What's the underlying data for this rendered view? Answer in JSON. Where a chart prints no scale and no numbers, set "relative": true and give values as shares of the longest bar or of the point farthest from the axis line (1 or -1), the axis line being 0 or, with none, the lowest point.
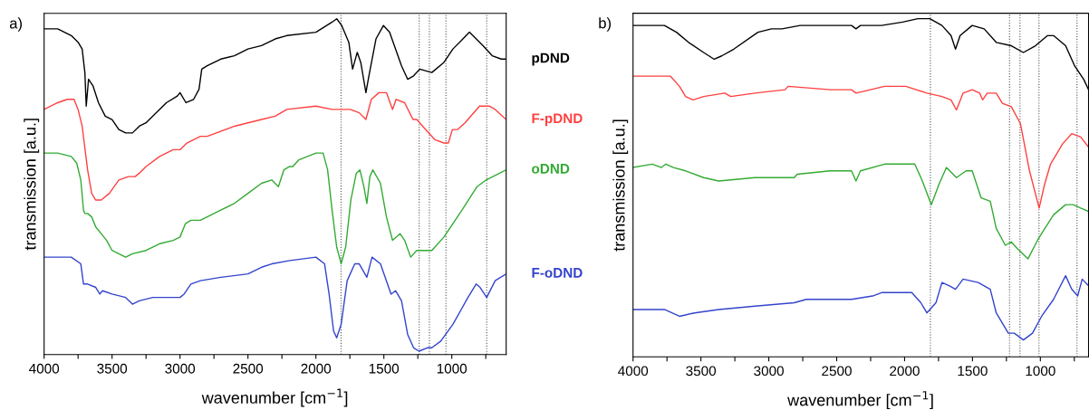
{
  "chart_data": [
    {
      "type": "line",
      "title": "a)",
      "xlabel": "wavenumber [cm$^{−1}$]",
      "ylabel": "transmission [a.u.]",
      "relative": true,
      "tick_labels": "x",
      "xlim": [
        4000,
        600
      ],
      "xticks": [
        4000,
        {
          "value": 3750,
          "label": null
        },
        3500,
        {
          "value": 3250,
          "label": null
        },
        3000,
        {
          "value": 2750,
          "label": null
        },
        2500,
        {
          "value": 2250,
          "label": null
        },
        2000,
        {
          "value": 1750,
          "label": null
        },
        1500,
        {
          "value": 1250,
          "label": null
        },
        1000,
        {
          "value": 750,
          "label": null
        }
      ],
      "ref_lines": [
        {
          "axis": "x",
          "value": 1815,
          "color": "#555555",
          "line_style": "dotted"
        },
        {
          "axis": "x",
          "value": 1240,
          "color": "#555555",
          "line_style": "dotted"
        },
        {
          "axis": "x",
          "value": 1165,
          "color": "#555555",
          "line_style": "dotted"
        },
        {
          "axis": "x",
          "value": 1043,
          "color": "#555555",
          "line_style": "dotted"
        },
        {
          "axis": "x",
          "value": 743,
          "color": "#555555",
          "line_style": "dotted"
        }
      ],
      "series": [
        {
          "name": "pDND",
          "color": "#000000",
          "x": [
            4000,
            3900,
            3850,
            3800,
            3750,
            3720,
            3700,
            3690,
            3673,
            3640,
            3600,
            3550,
            3500,
            3450,
            3400,
            3350,
            3300,
            3250,
            3200,
            3100,
            3020,
            3000,
            2956,
            2900,
            2860,
            2840,
            2800,
            2700,
            2600,
            2500,
            2400,
            2300,
            2214,
            2000,
            1881,
            1847,
            1810,
            1758,
            1730,
            1696,
            1670,
            1632,
            1610,
            1558,
            1503,
            1458,
            1370,
            1325,
            1281,
            1236,
            1147,
            1058,
            992,
            870,
            770,
            703,
            636,
            600
          ],
          "values": [
            0.97,
            0.97,
            0.96,
            0.95,
            0.93,
            0.91,
            0.84,
            0.74,
            0.82,
            0.8,
            0.75,
            0.71,
            0.7,
            0.67,
            0.66,
            0.66,
            0.68,
            0.69,
            0.71,
            0.75,
            0.77,
            0.78,
            0.75,
            0.76,
            0.79,
            0.85,
            0.86,
            0.88,
            0.89,
            0.91,
            0.92,
            0.94,
            0.95,
            0.96,
            0.99,
            1.0,
            0.98,
            0.93,
            0.85,
            0.9,
            0.87,
            0.78,
            0.83,
            0.94,
            0.98,
            0.96,
            0.86,
            0.82,
            0.83,
            0.85,
            0.84,
            0.87,
            0.91,
            0.96,
            0.92,
            0.89,
            0.88,
            0.88
          ]
        },
        {
          "name": "F-pDND",
          "color": "#ff4040",
          "x": [
            4000,
            3900,
            3830,
            3780,
            3750,
            3720,
            3680,
            3650,
            3620,
            3580,
            3520,
            3450,
            3380,
            3330,
            3300,
            3250,
            3150,
            3050,
            3000,
            2950,
            2900,
            2850,
            2800,
            2600,
            2400,
            2300,
            2214,
            2000,
            1881,
            1747,
            1681,
            1632,
            1592,
            1536,
            1481,
            1436,
            1410,
            1347,
            1298,
            1285,
            1258,
            1192,
            1125,
            1058,
            1025,
            996,
            958,
            903,
            796,
            759,
            725,
            681,
            600
          ],
          "values": [
            0.73,
            0.75,
            0.76,
            0.76,
            0.73,
            0.68,
            0.55,
            0.48,
            0.46,
            0.46,
            0.48,
            0.52,
            0.53,
            0.53,
            0.54,
            0.56,
            0.59,
            0.61,
            0.61,
            0.63,
            0.64,
            0.65,
            0.65,
            0.68,
            0.7,
            0.71,
            0.73,
            0.74,
            0.73,
            0.73,
            0.72,
            0.7,
            0.76,
            0.78,
            0.78,
            0.73,
            0.76,
            0.75,
            0.71,
            0.7,
            0.7,
            0.67,
            0.64,
            0.63,
            0.63,
            0.67,
            0.67,
            0.69,
            0.74,
            0.74,
            0.74,
            0.73,
            0.7
          ]
        },
        {
          "name": "oDND",
          "color": "#33aa33",
          "x": [
            4000,
            3900,
            3800,
            3760,
            3730,
            3710,
            3700,
            3680,
            3650,
            3620,
            3580,
            3540,
            3500,
            3450,
            3400,
            3350,
            3250,
            3150,
            3050,
            3000,
            2960,
            2920,
            2850,
            2800,
            2700,
            2600,
            2500,
            2400,
            2325,
            2276,
            2236,
            2192,
            2170,
            2125,
            2000,
            1947,
            1914,
            1881,
            1847,
            1814,
            1781,
            1743,
            1703,
            1676,
            1647,
            1625,
            1603,
            1581,
            1525,
            1481,
            1436,
            1381,
            1347,
            1303,
            1258,
            1147,
            1058,
            925,
            814,
            747,
            600
          ],
          "values": [
            0.6,
            0.6,
            0.59,
            0.57,
            0.52,
            0.43,
            0.42,
            0.42,
            0.41,
            0.38,
            0.36,
            0.34,
            0.31,
            0.3,
            0.29,
            0.3,
            0.31,
            0.33,
            0.34,
            0.35,
            0.39,
            0.4,
            0.4,
            0.41,
            0.43,
            0.45,
            0.48,
            0.51,
            0.52,
            0.5,
            0.55,
            0.56,
            0.56,
            0.58,
            0.6,
            0.6,
            0.55,
            0.43,
            0.32,
            0.27,
            0.32,
            0.46,
            0.54,
            0.55,
            0.5,
            0.45,
            0.53,
            0.55,
            0.51,
            0.41,
            0.34,
            0.36,
            0.34,
            0.29,
            0.31,
            0.31,
            0.35,
            0.43,
            0.5,
            0.52,
            0.55
          ]
        },
        {
          "name": "F-oDND",
          "color": "#3344cc",
          "x": [
            4000,
            3900,
            3800,
            3730,
            3710,
            3680,
            3620,
            3590,
            3570,
            3500,
            3400,
            3350,
            3300,
            3200,
            3150,
            3080,
            3000,
            2970,
            2920,
            2850,
            2700,
            2500,
            2400,
            2325,
            2192,
            2000,
            1936,
            1903,
            1870,
            1847,
            1814,
            1770,
            1714,
            1681,
            1625,
            1587,
            1525,
            1447,
            1414,
            1370,
            1325,
            1281,
            1241,
            1181,
            1147,
            1081,
            992,
            881,
            821,
            792,
            743,
            681,
            600
          ],
          "values": [
            0.29,
            0.29,
            0.29,
            0.27,
            0.21,
            0.21,
            0.2,
            0.18,
            0.19,
            0.18,
            0.17,
            0.15,
            0.16,
            0.17,
            0.17,
            0.17,
            0.17,
            0.18,
            0.21,
            0.22,
            0.23,
            0.24,
            0.26,
            0.27,
            0.28,
            0.29,
            0.27,
            0.18,
            0.07,
            0.05,
            0.09,
            0.22,
            0.27,
            0.27,
            0.23,
            0.29,
            0.27,
            0.18,
            0.19,
            0.16,
            0.06,
            0.02,
            0.01,
            0.02,
            0.02,
            0.04,
            0.09,
            0.17,
            0.21,
            0.2,
            0.17,
            0.22,
            0.24
          ]
        }
      ]
    },
    {
      "type": "line",
      "title": "b)",
      "xlabel": "wavenumber [cm$^{−1}$]",
      "ylabel": "transmission [a.u.]",
      "relative": true,
      "tick_labels": "x",
      "xlim": [
        4000,
        645
      ],
      "xticks": [
        4000,
        {
          "value": 3750,
          "label": null
        },
        3500,
        {
          "value": 3250,
          "label": null
        },
        3000,
        {
          "value": 2750,
          "label": null
        },
        2500,
        {
          "value": 2250,
          "label": null
        },
        2000,
        {
          "value": 1750,
          "label": null
        },
        1500,
        {
          "value": 1250,
          "label": null
        },
        1000,
        {
          "value": 750,
          "label": null
        }
      ],
      "ref_lines": [
        {
          "axis": "x",
          "value": 1810,
          "color": "#555555",
          "line_style": "dotted"
        },
        {
          "axis": "x",
          "value": 1227,
          "color": "#555555",
          "line_style": "dotted"
        },
        {
          "axis": "x",
          "value": 1150,
          "color": "#555555",
          "line_style": "dotted"
        },
        {
          "axis": "x",
          "value": 1010,
          "color": "#555555",
          "line_style": "dotted"
        },
        {
          "axis": "x",
          "value": 730,
          "color": "#555555",
          "line_style": "dotted"
        }
      ],
      "series": [
        {
          "color": "#000000",
          "x": [
            4000,
            3769,
            3680,
            3591,
            3480,
            3402,
            3347,
            3258,
            3080,
            2980,
            2902,
            2769,
            2547,
            2391,
            2358,
            2325,
            2169,
            2014,
            1902,
            1814,
            1725,
            1658,
            1625,
            1591,
            1502,
            1414,
            1325,
            1214,
            1125,
            1036,
            947,
            903,
            814,
            747,
            680,
            645
          ],
          "values": [
            0.98,
            0.98,
            0.96,
            0.93,
            0.9,
            0.88,
            0.89,
            0.91,
            0.96,
            0.97,
            0.97,
            0.98,
            0.98,
            0.98,
            0.97,
            0.98,
            0.98,
            0.99,
            1.0,
            1.0,
            0.98,
            0.95,
            0.91,
            0.95,
            0.98,
            0.97,
            0.93,
            0.92,
            0.9,
            0.92,
            0.95,
            0.95,
            0.92,
            0.86,
            0.82,
            0.79
          ]
        },
        {
          "color": "#ff4040",
          "x": [
            4000,
            3724,
            3658,
            3613,
            3558,
            3480,
            3324,
            3280,
            3102,
            2880,
            2858,
            2547,
            2391,
            2358,
            2147,
            1991,
            1836,
            1725,
            1658,
            1618,
            1569,
            1502,
            1447,
            1425,
            1391,
            1325,
            1280,
            1214,
            1147,
            1080,
            1009,
            969,
            925,
            836,
            769,
            703,
            645
          ],
          "values": [
            0.83,
            0.83,
            0.8,
            0.77,
            0.76,
            0.77,
            0.78,
            0.77,
            0.78,
            0.79,
            0.8,
            0.79,
            0.79,
            0.78,
            0.8,
            0.8,
            0.78,
            0.77,
            0.76,
            0.73,
            0.78,
            0.79,
            0.78,
            0.76,
            0.78,
            0.78,
            0.75,
            0.74,
            0.69,
            0.55,
            0.44,
            0.51,
            0.57,
            0.63,
            0.66,
            0.65,
            0.62
          ]
        },
        {
          "color": "#33aa33",
          "x": [
            4000,
            3858,
            3791,
            3758,
            3702,
            3613,
            3480,
            3369,
            3102,
            2813,
            2791,
            2547,
            2391,
            2358,
            2325,
            2147,
            1925,
            1869,
            1803,
            1747,
            1692,
            1618,
            1547,
            1502,
            1436,
            1369,
            1325,
            1258,
            1214,
            1169,
            1091,
            1014,
            903,
            814,
            758,
            703,
            645
          ],
          "values": [
            0.56,
            0.57,
            0.56,
            0.57,
            0.56,
            0.55,
            0.53,
            0.52,
            0.53,
            0.53,
            0.54,
            0.55,
            0.55,
            0.52,
            0.55,
            0.57,
            0.57,
            0.52,
            0.45,
            0.51,
            0.56,
            0.53,
            0.55,
            0.55,
            0.47,
            0.46,
            0.38,
            0.33,
            0.34,
            0.32,
            0.29,
            0.35,
            0.42,
            0.45,
            0.45,
            0.44,
            0.43
          ]
        },
        {
          "color": "#3344cc",
          "x": [
            4000,
            3769,
            3658,
            3547,
            3369,
            3102,
            2813,
            2724,
            2547,
            2391,
            2236,
            2169,
            2014,
            1947,
            1880,
            1836,
            1769,
            1725,
            1669,
            1625,
            1569,
            1458,
            1369,
            1325,
            1236,
            1192,
            1125,
            1058,
            991,
            903,
            814,
            769,
            725,
            692,
            645
          ],
          "values": [
            0.14,
            0.14,
            0.12,
            0.13,
            0.14,
            0.15,
            0.16,
            0.17,
            0.17,
            0.17,
            0.18,
            0.19,
            0.19,
            0.19,
            0.16,
            0.13,
            0.16,
            0.22,
            0.21,
            0.2,
            0.23,
            0.22,
            0.2,
            0.13,
            0.07,
            0.07,
            0.05,
            0.07,
            0.12,
            0.17,
            0.24,
            0.2,
            0.18,
            0.23,
            0.21
          ]
        }
      ]
    }
  ]
}
